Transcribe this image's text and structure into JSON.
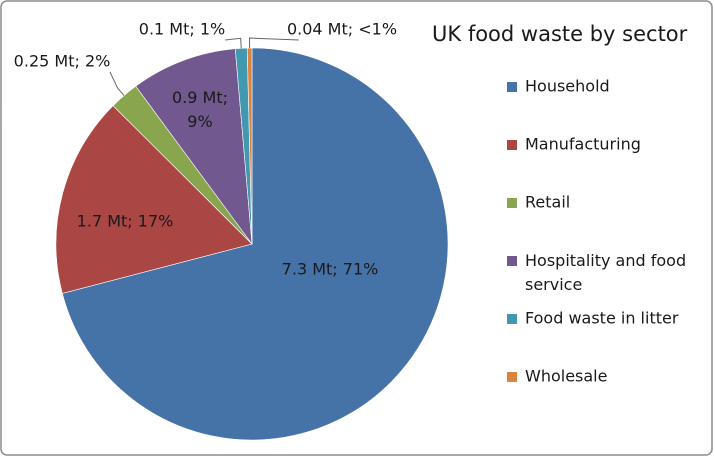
{
  "chart_data": {
    "type": "pie",
    "title": "UK food waste by sector",
    "categories": [
      "Household",
      "Manufacturing",
      "Retail",
      "Hospitality and food service",
      "Food waste in litter",
      "Wholesale"
    ],
    "values": [
      7.3,
      1.7,
      0.25,
      0.9,
      0.1,
      0.04
    ],
    "value_labels": [
      "7.3 Mt; 71%",
      "1.7 Mt; 17%",
      "0.25 Mt; 2%",
      "0.9 Mt; 9%",
      "0.1 Mt; 1%",
      "0.04 Mt; <1%"
    ],
    "colors": [
      "#4572a7",
      "#aa4643",
      "#89a54e",
      "#71588f",
      "#4198af",
      "#db843d"
    ],
    "legend": "right"
  }
}
